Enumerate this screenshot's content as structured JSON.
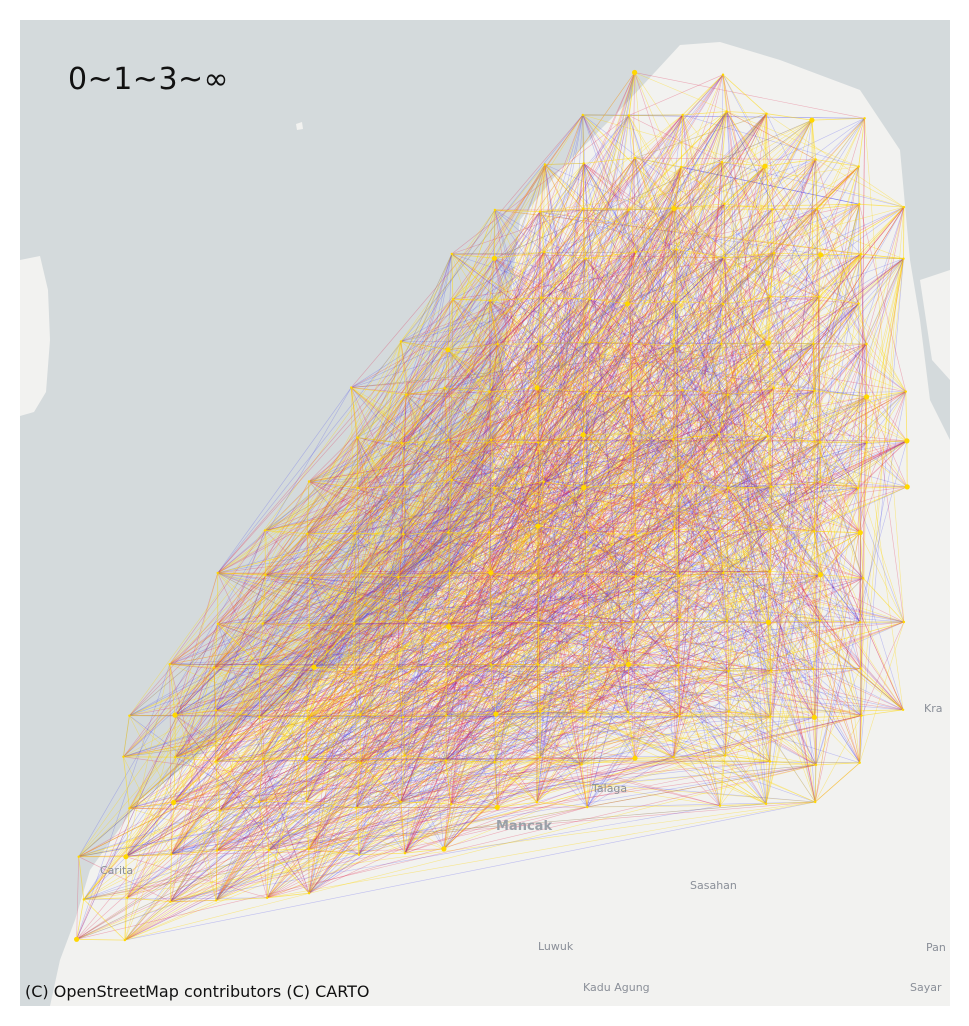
{
  "legend_label": "0~1~3~∞",
  "attribution": "(C) OpenStreetMap contributors (C) CARTO",
  "colors": {
    "sea": "#d4dadc",
    "land": "#f2f2f0",
    "bin_low": "#3a3af0",
    "bin_mid": "#e0204a",
    "bin_high": "#ffd700"
  },
  "places": [
    {
      "name": "Kra",
      "style": "normal"
    },
    {
      "name": "Talaga",
      "style": "normal"
    },
    {
      "name": "Mancak",
      "style": "bold"
    },
    {
      "name": "Sasahan",
      "style": "normal"
    },
    {
      "name": "Luwuk",
      "style": "normal"
    },
    {
      "name": "Kadu Agung",
      "style": "normal"
    },
    {
      "name": "Sayar",
      "style": "normal"
    },
    {
      "name": "Pan",
      "style": "normal"
    },
    {
      "name": "Carita",
      "style": "normal"
    }
  ]
}
